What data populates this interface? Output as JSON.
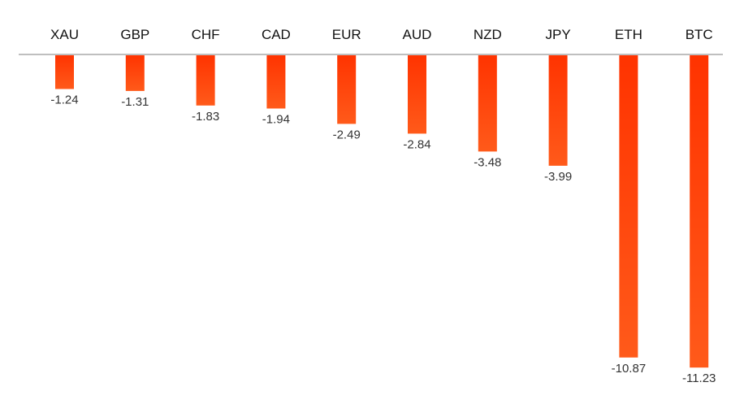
{
  "chart_data": {
    "type": "bar",
    "categories": [
      "XAU",
      "GBP",
      "CHF",
      "CAD",
      "EUR",
      "AUD",
      "NZD",
      "JPY",
      "ETH",
      "BTC"
    ],
    "values": [
      -1.24,
      -1.31,
      -1.83,
      -1.94,
      -2.49,
      -2.84,
      -3.48,
      -3.99,
      -10.87,
      -11.23
    ],
    "data_labels": [
      "-1.24",
      "-1.31",
      "-1.83",
      "-1.94",
      "-2.49",
      "-2.84",
      "-3.48",
      "-3.99",
      "-10.87",
      "-11.23"
    ],
    "title": "",
    "xlabel": "",
    "ylabel": "",
    "ylim": [
      -11.23,
      0
    ],
    "grid": false,
    "legend": "none",
    "axis_position": "top",
    "colors": {
      "bar_top": "#ff3300",
      "bar_bottom": "#ff5a1a",
      "axis": "#bfbfbf",
      "label": "#111111",
      "data_label": "#333333"
    }
  }
}
